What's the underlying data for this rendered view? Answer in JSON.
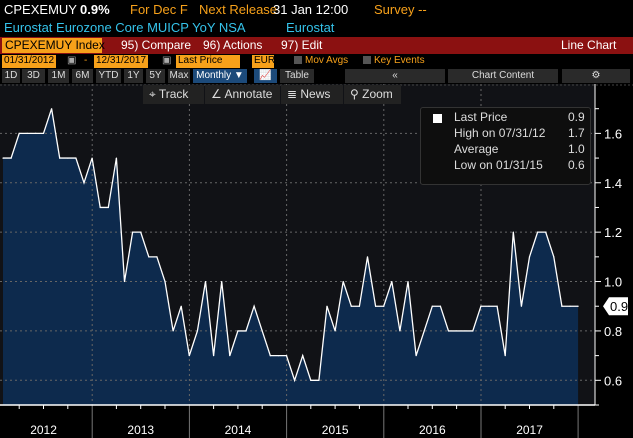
{
  "header": {
    "ticker": "CPEXEMUY",
    "value": "0.9%",
    "for": "For Dec F",
    "next_release": "Next Release",
    "release_time": "31 Jan 12:00",
    "survey": "Survey --",
    "description": "Eurostat Eurozone Core MUICP YoY NSA",
    "source": "Eurostat"
  },
  "menubar": {
    "security": "CPEXEMUY Index",
    "compare": "95) Compare",
    "actions": "96) Actions",
    "edit": "97) Edit",
    "chart_type": "Line Chart"
  },
  "controls": {
    "start_date": "01/31/2012",
    "dash": "-",
    "end_date": "12/31/2017",
    "field": "Last Price",
    "currency": "EUR",
    "mov_avgs": "Mov Avgs",
    "key_events": "Key Events"
  },
  "periods": [
    "1D",
    "3D",
    "1M",
    "6M",
    "YTD",
    "1Y",
    "5Y",
    "Max"
  ],
  "frequency": "Monthly ▼",
  "table_label": "Table",
  "collapse": "«",
  "chart_content": "Chart Content",
  "gear": "⚙",
  "tools": {
    "track": "Track",
    "annotate": "Annotate",
    "news": "News",
    "zoom": "Zoom"
  },
  "legend": {
    "last_label": "Last Price",
    "last": "0.9",
    "high_label": "High on 07/31/12",
    "high": "1.7",
    "avg_label": "Average",
    "avg": "1.0",
    "low_label": "Low on 01/31/15",
    "low": "0.6"
  },
  "colors": {
    "line": "#ffffff",
    "fill": "#0d2a4d",
    "orange": "#f7a11a",
    "red": "#8b1111"
  },
  "chart_data": {
    "type": "area",
    "title": "CPEXEMUY Index",
    "x_start": "2012-01",
    "frequency": "monthly",
    "x_ticks": [
      "2012",
      "2013",
      "2014",
      "2015",
      "2016",
      "2017"
    ],
    "y_ticks": [
      "0.6",
      "0.8",
      "1.0",
      "1.2",
      "1.4",
      "1.6"
    ],
    "ylim": [
      0.5,
      1.8
    ],
    "last_value_label": "0.9",
    "values": [
      1.5,
      1.5,
      1.6,
      1.6,
      1.6,
      1.6,
      1.7,
      1.5,
      1.5,
      1.5,
      1.4,
      1.5,
      1.3,
      1.3,
      1.5,
      1.0,
      1.2,
      1.2,
      1.1,
      1.1,
      1.0,
      0.8,
      0.9,
      0.7,
      0.8,
      1.0,
      0.7,
      1.0,
      0.7,
      0.8,
      0.8,
      0.9,
      0.8,
      0.7,
      0.7,
      0.7,
      0.6,
      0.7,
      0.6,
      0.6,
      0.9,
      0.8,
      1.0,
      0.9,
      0.9,
      1.1,
      0.9,
      0.9,
      1.0,
      0.8,
      1.0,
      0.7,
      0.8,
      0.9,
      0.9,
      0.8,
      0.8,
      0.8,
      0.8,
      0.9,
      0.9,
      0.9,
      0.7,
      1.2,
      0.9,
      1.1,
      1.2,
      1.2,
      1.1,
      0.9,
      0.9,
      0.9
    ]
  }
}
